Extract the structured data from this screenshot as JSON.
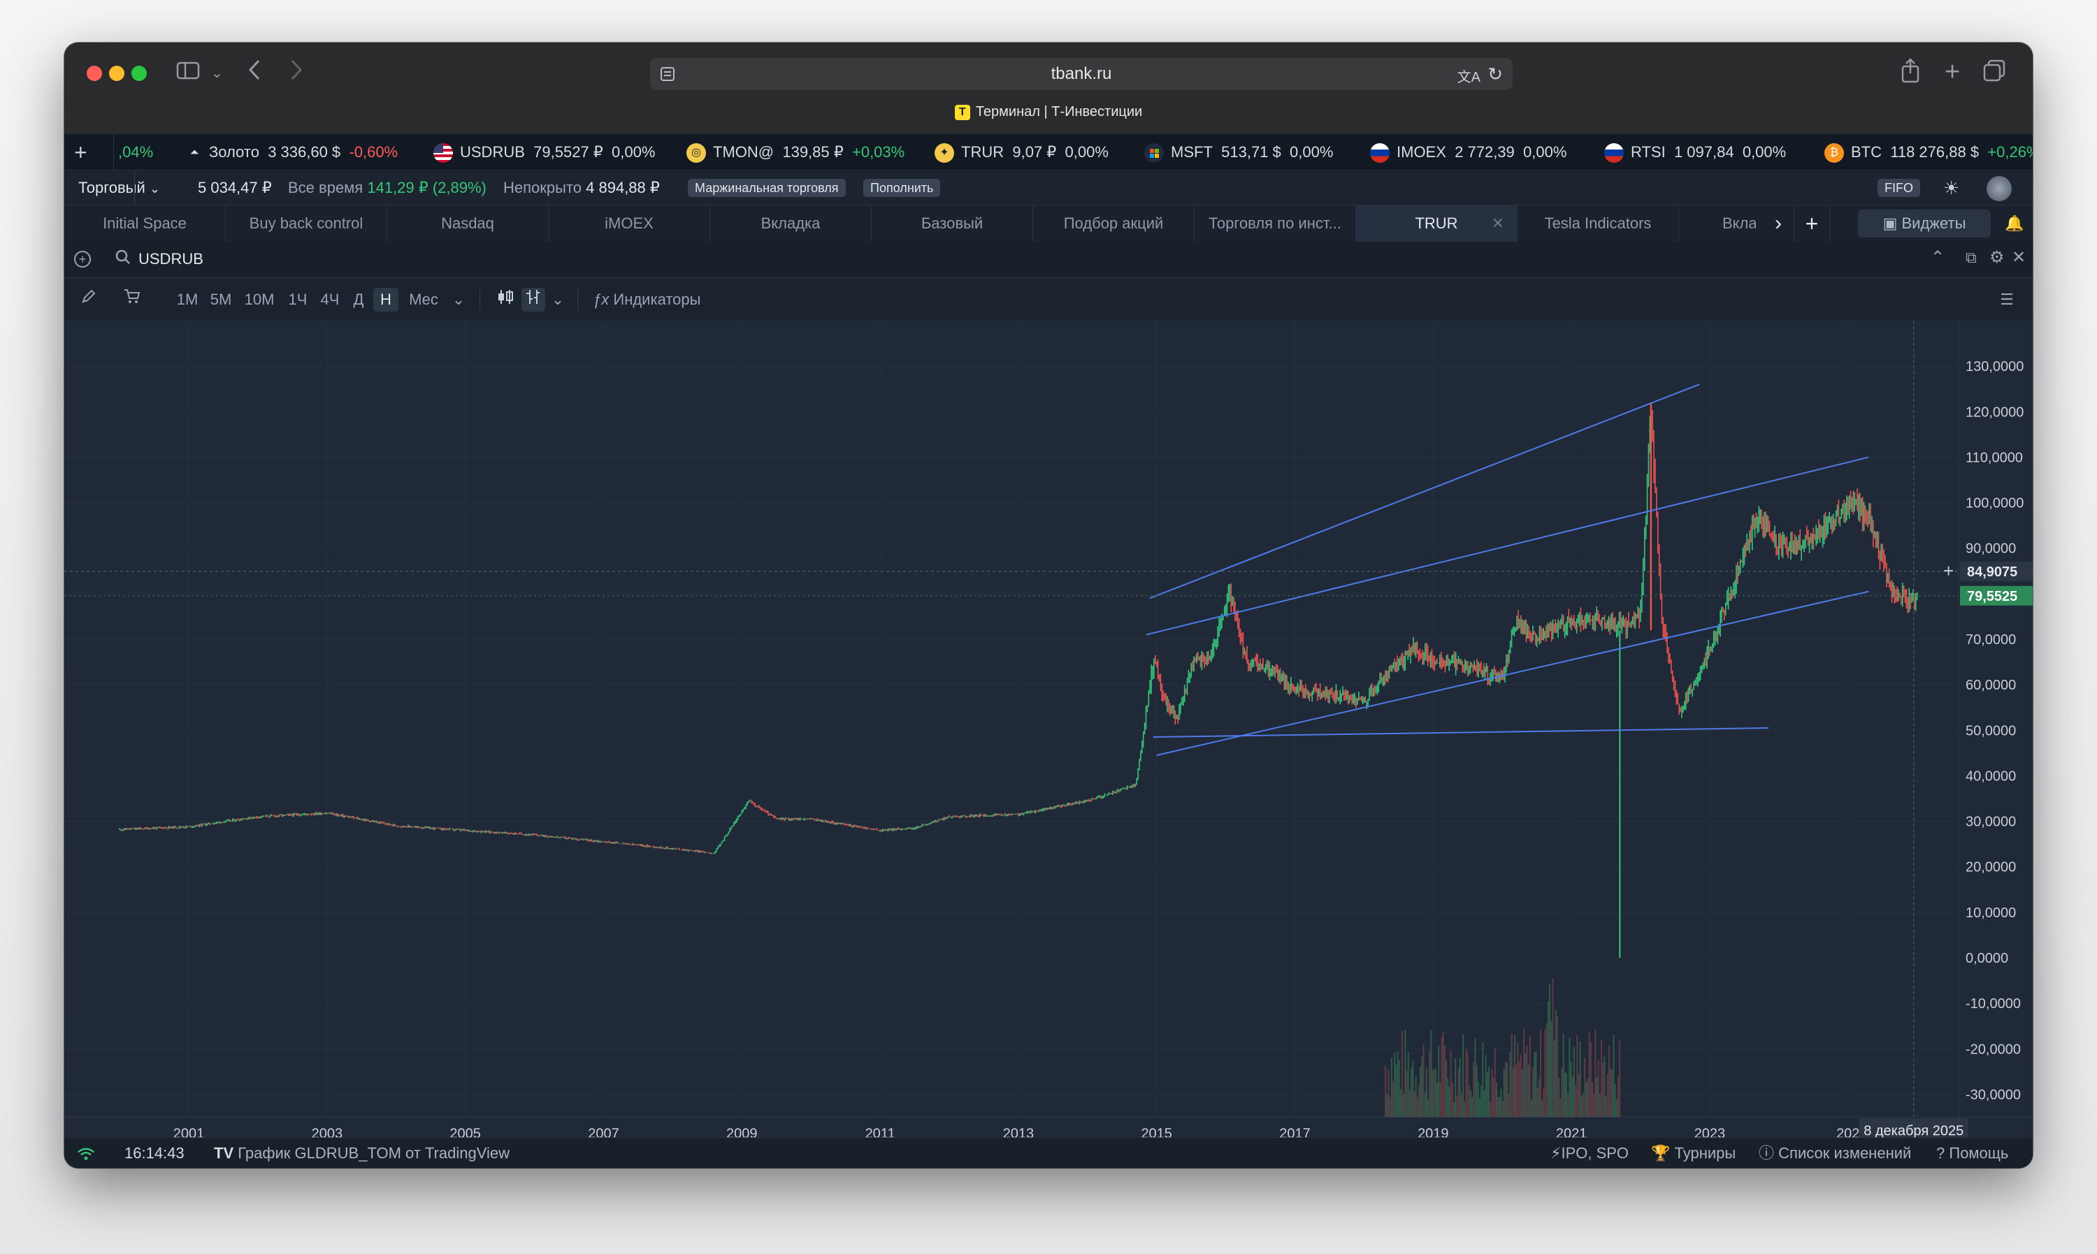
{
  "browser": {
    "url": "tbank.ru",
    "page_title": "Терминал | Т-Инвестиции"
  },
  "ticker": [
    {
      "name": "",
      "price": "",
      "change": ",04%",
      "dir": "pos",
      "icon": "none"
    },
    {
      "name": "Золото",
      "price": "3 336,60 $",
      "change": "-0,60%",
      "dir": "neg",
      "icon": "gold-icon"
    },
    {
      "name": "USDRUB",
      "price": "79,5527 ₽",
      "change": "0,00%",
      "dir": "flat",
      "icon": "us-flag-icon"
    },
    {
      "name": "TMON@",
      "price": "139,85 ₽",
      "change": "+0,03%",
      "dir": "pos",
      "icon": "tmon-icon"
    },
    {
      "name": "TRUR",
      "price": "9,07 ₽",
      "change": "0,00%",
      "dir": "flat",
      "icon": "trur-icon"
    },
    {
      "name": "MSFT",
      "price": "513,71 $",
      "change": "0,00%",
      "dir": "flat",
      "icon": "microsoft-icon"
    },
    {
      "name": "IMOEX",
      "price": "2 772,39",
      "change": "0,00%",
      "dir": "flat",
      "icon": "ru-flag-icon"
    },
    {
      "name": "RTSI",
      "price": "1 097,84",
      "change": "0,00%",
      "dir": "flat",
      "icon": "ru-flag-icon"
    },
    {
      "name": "BTC",
      "price": "118 276,88 $",
      "change": "+0,26%",
      "dir": "pos",
      "icon": "bitcoin-icon"
    }
  ],
  "account": {
    "selector": "Торговый",
    "balance": "5 034,47 ₽",
    "alltime_label": "Все время",
    "alltime_value": "141,29 ₽ (2,89%)",
    "uncovered_label": "Непокрыто",
    "uncovered_value": "4 894,88 ₽",
    "margin_chip": "Маржинальная торговля",
    "topup_chip": "Пополнить",
    "fifo_chip": "FIFO"
  },
  "tabs": [
    {
      "label": "Initial Space"
    },
    {
      "label": "Buy back control"
    },
    {
      "label": "Nasdaq"
    },
    {
      "label": "iMOEX"
    },
    {
      "label": "Вкладка"
    },
    {
      "label": "Базовый"
    },
    {
      "label": "Подбор акций"
    },
    {
      "label": "Торговля по инст..."
    },
    {
      "label": "TRUR",
      "active": true
    },
    {
      "label": "Tesla Indicators"
    },
    {
      "label": "Вкла"
    }
  ],
  "tabs_extra": {
    "widgets_label": "Виджеты"
  },
  "symbol": {
    "search_value": "USDRUB"
  },
  "toolbar": {
    "intervals": [
      "1М",
      "5М",
      "10М",
      "1Ч",
      "4Ч",
      "Д",
      "Н",
      "Мес"
    ],
    "active_interval": "Н",
    "indicators_label": "Индикаторы"
  },
  "statusbar": {
    "time": "16:14:43",
    "source": "График GLDRUB_TOM от TradingView",
    "ipo": "IPO, SPO",
    "tournaments": "Турниры",
    "changelog": "Список изменений",
    "help": "Помощь"
  },
  "colors": {
    "up": "#36c77b",
    "down": "#ef5350",
    "trendline": "#4f7bea",
    "bg": "#1f2937"
  },
  "chart_data": {
    "type": "candlestick",
    "symbol": "USDRUB",
    "interval": "Н",
    "y_ticks": [
      "130,0000",
      "120,0000",
      "110,0000",
      "100,0000",
      "90,0000",
      "80,0000",
      "70,0000",
      "60,0000",
      "50,0000",
      "40,0000",
      "30,0000",
      "20,0000",
      "10,0000",
      "0,0000",
      "-10,0000",
      "-20,0000",
      "-30,0000"
    ],
    "ylim": [
      -35,
      140
    ],
    "x_ticks": [
      "2001",
      "2003",
      "2005",
      "2007",
      "2009",
      "2011",
      "2013",
      "2015",
      "2017",
      "2019",
      "2021",
      "2023",
      "202"
    ],
    "xlim": [
      1999.2,
      2026.6
    ],
    "crosshair_price": "84,9075",
    "last_price": "79,5525",
    "crosshair_date": "8 декабря 2025",
    "series": [
      {
        "name": "USDRUB",
        "x": [
          2000.0,
          2001.0,
          2002.0,
          2003.0,
          2004.0,
          2005.0,
          2006.0,
          2007.0,
          2008.0,
          2008.6,
          2009.1,
          2009.5,
          2010.0,
          2011.0,
          2011.5,
          2012.0,
          2013.0,
          2014.0,
          2014.7,
          2014.96,
          2015.1,
          2015.3,
          2015.5,
          2015.8,
          2016.05,
          2016.3,
          2016.7,
          2017.0,
          2017.5,
          2018.0,
          2018.3,
          2018.7,
          2019.0,
          2019.5,
          2020.0,
          2020.2,
          2020.5,
          2020.9,
          2021.3,
          2021.8,
          2022.0,
          2022.15,
          2022.3,
          2022.55,
          2022.8,
          2023.0,
          2023.3,
          2023.7,
          2024.0,
          2024.5,
          2025.0,
          2025.3,
          2025.6,
          2025.9,
          2026.0
        ],
        "y": [
          28.2,
          28.8,
          31.0,
          31.8,
          29.0,
          28.0,
          27.0,
          25.5,
          24.0,
          23.0,
          34.5,
          30.5,
          30.5,
          28.0,
          28.5,
          31.0,
          31.5,
          34.5,
          38.0,
          66.0,
          57.0,
          52.5,
          64.0,
          67.0,
          80.0,
          65.0,
          63.0,
          59.0,
          58.0,
          56.5,
          61.5,
          68.0,
          65.5,
          64.0,
          61.5,
          74.0,
          70.0,
          73.5,
          74.5,
          73.0,
          76.0,
          120.0,
          75.0,
          54.0,
          60.0,
          68.0,
          80.0,
          97.0,
          90.0,
          92.0,
          100.0,
          97.0,
          82.0,
          78.0,
          79.5
        ]
      }
    ],
    "trendlines": [
      {
        "from": [
          2014.9,
          79.0
        ],
        "to": [
          2022.85,
          126.0
        ]
      },
      {
        "from": [
          2014.85,
          71.0
        ],
        "to": [
          2025.3,
          110.0
        ]
      },
      {
        "from": [
          2015.0,
          44.5
        ],
        "to": [
          2025.3,
          80.5
        ]
      },
      {
        "from": [
          2014.95,
          48.5
        ],
        "to": [
          2023.85,
          50.5
        ]
      }
    ],
    "volume": {
      "x_start": 2018.3,
      "x_end": 2021.7
    }
  }
}
